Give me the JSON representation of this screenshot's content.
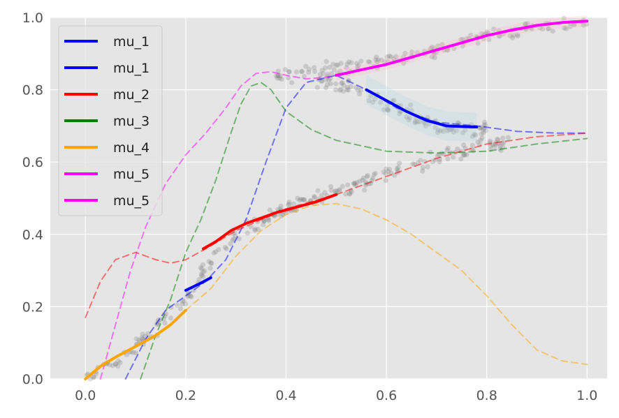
{
  "chart_data": {
    "type": "line",
    "title": "",
    "xlabel": "",
    "ylabel": "",
    "xlim": [
      -0.07,
      1.04
    ],
    "ylim": [
      0.0,
      1.0
    ],
    "grid": true,
    "background": "#e5e5e5",
    "legend_position": "top-left",
    "x_ticks": [
      "0.0",
      "0.2",
      "0.4",
      "0.6",
      "0.8",
      "1.0"
    ],
    "y_ticks": [
      "0.0",
      "0.2",
      "0.4",
      "0.6",
      "0.8",
      "1.0"
    ],
    "legend": [
      {
        "label": "mu_1",
        "color": "#0000ff"
      },
      {
        "label": "mu_1",
        "color": "#0000ff"
      },
      {
        "label": "mu_2",
        "color": "#ff0000"
      },
      {
        "label": "mu_3",
        "color": "#008000"
      },
      {
        "label": "mu_4",
        "color": "#ffa500"
      },
      {
        "label": "mu_5",
        "color": "#ff00ff"
      },
      {
        "label": "mu_5",
        "color": "#ff00ff"
      }
    ],
    "series": [
      {
        "name": "mu_1",
        "style": "dashed",
        "color": "#0000ff",
        "x": [
          0.08,
          0.12,
          0.16,
          0.2,
          0.24,
          0.28,
          0.32,
          0.36,
          0.4,
          0.44,
          0.5,
          0.56,
          0.62,
          0.7,
          0.78,
          0.86,
          0.94,
          1.0
        ],
        "y": [
          0.0,
          0.11,
          0.19,
          0.23,
          0.27,
          0.33,
          0.44,
          0.6,
          0.75,
          0.82,
          0.84,
          0.8,
          0.75,
          0.71,
          0.7,
          0.685,
          0.68,
          0.68
        ]
      },
      {
        "name": "mu_1",
        "style": "solid",
        "color": "#0000ff",
        "x": [
          0.2,
          0.23,
          0.25
        ],
        "y": [
          0.245,
          0.265,
          0.28
        ]
      },
      {
        "name": "mu_1",
        "style": "solid",
        "color": "#0000ff",
        "x": [
          0.56,
          0.6,
          0.64,
          0.68,
          0.72,
          0.75,
          0.78
        ],
        "y": [
          0.8,
          0.77,
          0.74,
          0.715,
          0.7,
          0.698,
          0.697
        ]
      },
      {
        "name": "mu_2",
        "style": "dashed",
        "color": "#ff0000",
        "x": [
          0.0,
          0.03,
          0.06,
          0.1,
          0.14,
          0.17,
          0.2,
          0.24,
          0.3,
          0.4,
          0.5,
          0.6,
          0.7,
          0.8,
          0.9,
          1.0
        ],
        "y": [
          0.17,
          0.27,
          0.33,
          0.35,
          0.33,
          0.32,
          0.33,
          0.36,
          0.41,
          0.47,
          0.51,
          0.56,
          0.61,
          0.65,
          0.67,
          0.68
        ]
      },
      {
        "name": "mu_2",
        "style": "solid",
        "color": "#ff0000",
        "x": [
          0.235,
          0.26,
          0.29,
          0.32,
          0.35,
          0.38,
          0.42,
          0.46,
          0.5
        ],
        "y": [
          0.36,
          0.38,
          0.41,
          0.43,
          0.445,
          0.46,
          0.475,
          0.49,
          0.51
        ]
      },
      {
        "name": "mu_3",
        "style": "dashed",
        "color": "#008000",
        "x": [
          0.11,
          0.14,
          0.17,
          0.2,
          0.23,
          0.26,
          0.29,
          0.31,
          0.33,
          0.35,
          0.37,
          0.4,
          0.45,
          0.5,
          0.6,
          0.7,
          0.8,
          0.9,
          1.0
        ],
        "y": [
          0.0,
          0.12,
          0.22,
          0.35,
          0.44,
          0.55,
          0.68,
          0.76,
          0.81,
          0.82,
          0.8,
          0.74,
          0.69,
          0.66,
          0.63,
          0.625,
          0.63,
          0.65,
          0.665
        ]
      },
      {
        "name": "mu_4",
        "style": "dashed",
        "color": "#ffa500",
        "x": [
          0.2,
          0.25,
          0.3,
          0.35,
          0.4,
          0.45,
          0.5,
          0.55,
          0.6,
          0.65,
          0.7,
          0.75,
          0.8,
          0.85,
          0.9,
          0.95,
          1.0
        ],
        "y": [
          0.19,
          0.25,
          0.34,
          0.41,
          0.455,
          0.48,
          0.485,
          0.47,
          0.44,
          0.4,
          0.35,
          0.3,
          0.23,
          0.15,
          0.08,
          0.05,
          0.04
        ]
      },
      {
        "name": "mu_4",
        "style": "solid",
        "color": "#ffa500",
        "x": [
          0.0,
          0.03,
          0.06,
          0.1,
          0.14,
          0.17,
          0.2
        ],
        "y": [
          0.0,
          0.035,
          0.06,
          0.09,
          0.12,
          0.15,
          0.19
        ]
      },
      {
        "name": "mu_5",
        "style": "dashed",
        "color": "#ff00ff",
        "x": [
          0.03,
          0.06,
          0.09,
          0.12,
          0.16,
          0.2,
          0.24,
          0.28,
          0.31,
          0.34,
          0.37,
          0.4,
          0.44,
          0.48,
          0.5
        ],
        "y": [
          0.0,
          0.15,
          0.3,
          0.42,
          0.54,
          0.62,
          0.68,
          0.75,
          0.81,
          0.845,
          0.85,
          0.84,
          0.83,
          0.835,
          0.84
        ]
      },
      {
        "name": "mu_5",
        "style": "solid",
        "color": "#ff00ff",
        "x": [
          0.5,
          0.55,
          0.6,
          0.65,
          0.7,
          0.75,
          0.8,
          0.85,
          0.9,
          0.95,
          1.0
        ],
        "y": [
          0.84,
          0.855,
          0.87,
          0.89,
          0.91,
          0.93,
          0.95,
          0.965,
          0.978,
          0.986,
          0.99
        ]
      }
    ]
  }
}
